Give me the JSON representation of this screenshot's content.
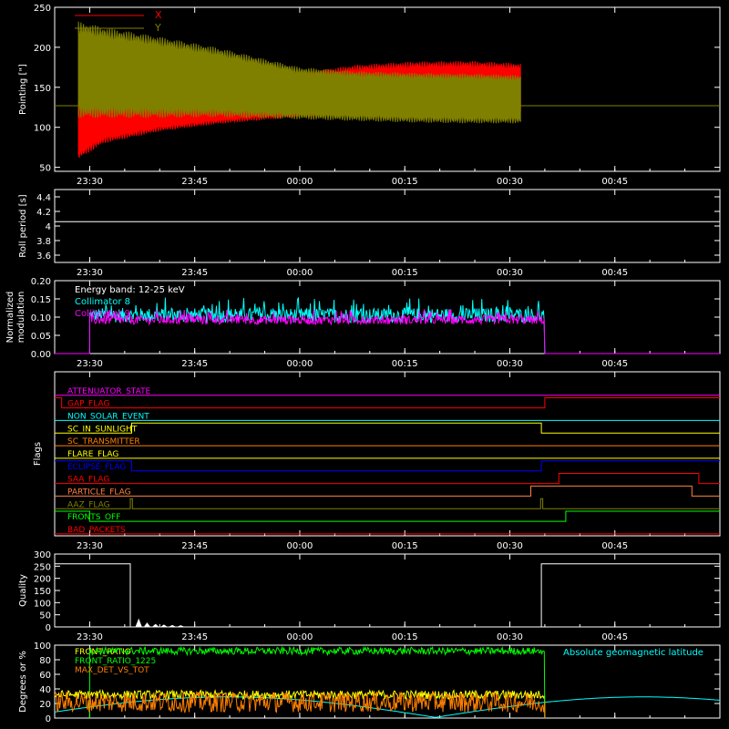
{
  "chart_data": [
    {
      "id": "pointing",
      "type": "line",
      "ylabel": "Pointing [\"]",
      "ylim": [
        45,
        250
      ],
      "yticks": [
        50,
        100,
        150,
        200,
        250
      ],
      "xlim": [
        -35,
        60
      ],
      "xticks": [
        "23:30",
        "23:45",
        "00:00",
        "00:15",
        "00:30",
        "00:45"
      ],
      "xtick_minutes": [
        -30,
        -15,
        0,
        15,
        30,
        45
      ],
      "legend": [
        {
          "name": "X",
          "color": "#ff0000"
        },
        {
          "name": "Y",
          "color": "#808000"
        }
      ],
      "reference_line": 127,
      "x_envelope": {
        "x": [
          -31.6,
          -28,
          -20,
          -12,
          0,
          8,
          16,
          24,
          31.6
        ],
        "upper": [
          140,
          145,
          148,
          150,
          168,
          178,
          182,
          183,
          180
        ],
        "lower": [
          60,
          80,
          95,
          104,
          113,
          115,
          116,
          117,
          118
        ]
      },
      "y_envelope": {
        "x": [
          -31.6,
          -28,
          -20,
          -12,
          0,
          8,
          16,
          24,
          31.6
        ],
        "upper": [
          232,
          225,
          213,
          200,
          175,
          170,
          168,
          167,
          165
        ],
        "lower": [
          112,
          112,
          112,
          113,
          110,
          108,
          106,
          105,
          105
        ]
      }
    },
    {
      "id": "roll",
      "type": "line",
      "ylabel": "Roll period [s]",
      "ylim": [
        3.5,
        4.5
      ],
      "yticks": [
        3.6,
        3.8,
        4.0,
        4.2,
        4.4
      ],
      "xlim": [
        -35,
        60
      ],
      "xticks": [
        "23:30",
        "23:45",
        "00:00",
        "00:15",
        "00:30",
        "00:45"
      ],
      "xtick_minutes": [
        -30,
        -15,
        0,
        15,
        30,
        45
      ],
      "value": 4.06
    },
    {
      "id": "modulation",
      "type": "line",
      "ylabel": "Normalized modulation",
      "ylim": [
        0,
        0.2
      ],
      "yticks": [
        "0.00",
        "0.05",
        "0.10",
        "0.15",
        "0.20"
      ],
      "xlim": [
        -35,
        60
      ],
      "xticks": [
        "23:30",
        "23:45",
        "00:00",
        "00:15",
        "00:30",
        "00:45"
      ],
      "xtick_minutes": [
        -30,
        -15,
        0,
        15,
        30,
        45
      ],
      "annotation": "Energy band: 12-25 keV",
      "series": [
        {
          "name": "Collimator 8",
          "color": "#00ffff",
          "start": -30,
          "end": 35,
          "base": 0.095,
          "spread": 0.05
        },
        {
          "name": "Collimator 9",
          "color": "#ff00ff",
          "start": -30,
          "end": 35,
          "base": 0.09,
          "spread": 0.03
        }
      ]
    },
    {
      "id": "flags",
      "type": "line",
      "ylabel": "Flags",
      "xlim": [
        -35,
        60
      ],
      "xticks": [
        "23:30",
        "23:45",
        "00:00",
        "00:15",
        "00:30",
        "00:45"
      ],
      "xtick_minutes": [
        -30,
        -15,
        0,
        15,
        30,
        45
      ],
      "series": [
        {
          "name": "ATTENUATOR_STATE",
          "color": "#ff00ff",
          "steps": [
            [
              -35,
              0
            ]
          ]
        },
        {
          "name": "GAP_FLAG",
          "color": "#ff0000",
          "steps": [
            [
              -35,
              1
            ],
            [
              -34,
              0
            ],
            [
              35,
              1
            ]
          ]
        },
        {
          "name": "NON_SOLAR_EVENT",
          "color": "#00ffff",
          "steps": [
            [
              -35,
              0
            ]
          ]
        },
        {
          "name": "SC_IN_SUNLIGHT",
          "color": "#ffff00",
          "steps": [
            [
              -35,
              0
            ],
            [
              -24,
              1
            ],
            [
              34.5,
              0
            ]
          ]
        },
        {
          "name": "SC_TRANSMITTER",
          "color": "#ff8000",
          "steps": [
            [
              -35,
              0
            ]
          ]
        },
        {
          "name": "FLARE_FLAG",
          "color": "#ffff00",
          "steps": [
            [
              -35,
              0
            ]
          ]
        },
        {
          "name": "ECLIPSE_FLAG",
          "color": "#0000ff",
          "steps": [
            [
              -35,
              1
            ],
            [
              -24,
              0
            ],
            [
              34.5,
              1
            ]
          ]
        },
        {
          "name": "SAA_FLAG",
          "color": "#ff0000",
          "steps": [
            [
              -35,
              0
            ],
            [
              37,
              1
            ],
            [
              57,
              0
            ]
          ]
        },
        {
          "name": "PARTICLE_FLAG",
          "color": "#ff8040",
          "steps": [
            [
              -35,
              0
            ],
            [
              33,
              1
            ],
            [
              56,
              0
            ]
          ]
        },
        {
          "name": "AAZ_FLAG",
          "color": "#808000",
          "steps": [
            [
              -35,
              0
            ],
            [
              -24.2,
              1
            ],
            [
              -23.9,
              0
            ],
            [
              34.4,
              1
            ],
            [
              34.7,
              0
            ]
          ]
        },
        {
          "name": "FRONTS_OFF",
          "color": "#00ff00",
          "steps": [
            [
              -35,
              1
            ],
            [
              -30,
              0
            ],
            [
              38,
              1
            ]
          ]
        },
        {
          "name": "BAD_PACKETS",
          "color": "#ff0000",
          "steps": [
            [
              -35,
              0
            ]
          ]
        }
      ]
    },
    {
      "id": "quality",
      "type": "line",
      "ylabel": "Quality",
      "ylim": [
        0,
        300
      ],
      "yticks": [
        0,
        50,
        100,
        150,
        200,
        250,
        300
      ],
      "xlim": [
        -35,
        60
      ],
      "xticks": [
        "23:30",
        "23:45",
        "00:00",
        "00:15",
        "00:30",
        "00:45"
      ],
      "xtick_minutes": [
        -30,
        -15,
        0,
        15,
        30,
        45
      ],
      "segments": [
        [
          -35,
          260
        ],
        [
          -24.2,
          260
        ],
        [
          -24.2,
          0
        ],
        [
          34.5,
          0
        ],
        [
          34.5,
          260
        ],
        [
          60,
          260
        ]
      ]
    },
    {
      "id": "ratios",
      "type": "line",
      "ylabel": "Degrees or %",
      "ylim": [
        0,
        100
      ],
      "yticks": [
        0,
        20,
        40,
        60,
        80,
        100
      ],
      "xlim": [
        -35,
        60
      ],
      "xticks": [
        "23:30",
        "23:45",
        "00:00",
        "00:15",
        "00:30",
        "00:45"
      ],
      "xtick_minutes": [
        -30,
        -15,
        0,
        15,
        30,
        45
      ],
      "legend_right": {
        "name": "Absolute geomagnetic latitude",
        "color": "#00ffff"
      },
      "series": [
        {
          "name": "FRONT_RATIO",
          "color": "#ffff00",
          "start": -35,
          "end": 35,
          "base": 32,
          "spread": 6
        },
        {
          "name": "FRONT_RATIO_1225",
          "color": "#00ff00",
          "start": -30,
          "end": 35,
          "base": 92,
          "spread": 5
        },
        {
          "name": "MAX_DET_VS_TOT",
          "color": "#ff8000",
          "start": -35,
          "end": 35,
          "base": 22,
          "spread": 14
        }
      ]
    }
  ]
}
